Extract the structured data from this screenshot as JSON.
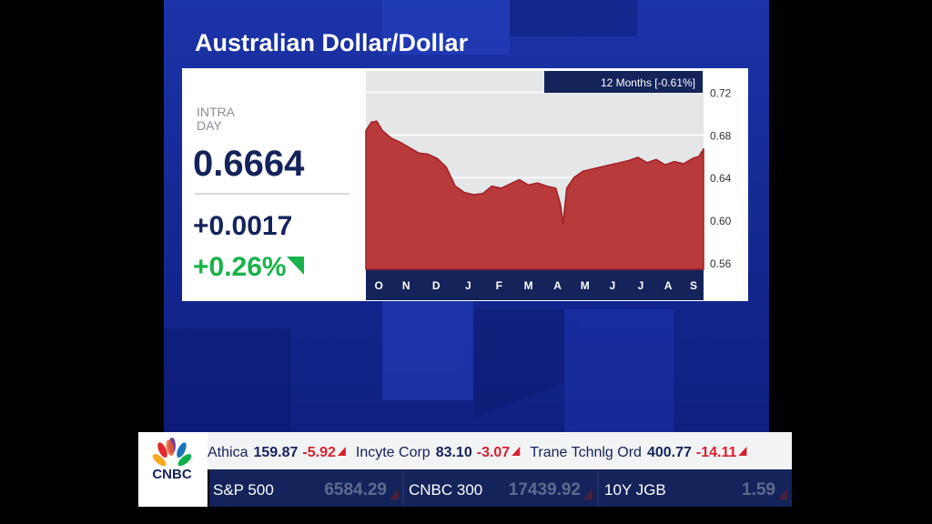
{
  "header": {
    "title": "Australian Dollar/Dollar"
  },
  "quote": {
    "label_lines": [
      "INTRA",
      "DAY"
    ],
    "price": "0.6664",
    "change": "+0.0017",
    "percent": "+0.26%"
  },
  "chart_data": {
    "type": "area",
    "annotation": "12 Months [-0.61%]",
    "color": "#b83a3a",
    "grid": true,
    "x": [
      0,
      0.19,
      0.38,
      0.58,
      0.89,
      1.21,
      1.53,
      1.85,
      2.17,
      2.49,
      2.81,
      3.13,
      3.45,
      3.77,
      4.09,
      4.41,
      4.73,
      5.05,
      5.37,
      5.69,
      6.01,
      6.33,
      6.65,
      6.81,
      6.9,
      7.03,
      7.28,
      7.6,
      7.92,
      8.24,
      8.56,
      8.88,
      9.2,
      9.52,
      9.84,
      10.16,
      10.48,
      10.8,
      11.12,
      11.44,
      11.66,
      11.82
    ],
    "values": [
      0.684,
      0.692,
      0.693,
      0.684,
      0.677,
      0.673,
      0.668,
      0.663,
      0.662,
      0.658,
      0.65,
      0.632,
      0.626,
      0.624,
      0.625,
      0.632,
      0.63,
      0.634,
      0.638,
      0.633,
      0.635,
      0.632,
      0.63,
      0.615,
      0.597,
      0.63,
      0.64,
      0.646,
      0.648,
      0.65,
      0.652,
      0.654,
      0.656,
      0.659,
      0.654,
      0.657,
      0.652,
      0.655,
      0.653,
      0.658,
      0.66,
      0.667
    ],
    "xlim": [
      0,
      11.82
    ],
    "ylim": [
      0.554,
      0.74
    ],
    "xticks": [
      {
        "value": 0.45,
        "label": "O"
      },
      {
        "value": 1.41,
        "label": "N"
      },
      {
        "value": 2.46,
        "label": "D"
      },
      {
        "value": 3.58,
        "label": "J"
      },
      {
        "value": 4.66,
        "label": "F"
      },
      {
        "value": 5.69,
        "label": "M"
      },
      {
        "value": 6.71,
        "label": "A"
      },
      {
        "value": 7.67,
        "label": "M"
      },
      {
        "value": 8.63,
        "label": "J"
      },
      {
        "value": 9.62,
        "label": "J"
      },
      {
        "value": 10.58,
        "label": "A"
      },
      {
        "value": 11.47,
        "label": "S"
      }
    ],
    "yticks": [
      0.56,
      {
        "value": 0.6,
        "label": "0.60"
      },
      0.64,
      0.68,
      0.72
    ]
  },
  "ticker": {
    "logo": "CNBC",
    "stocks": [
      {
        "name": "Athica",
        "price": "159.87",
        "change": "-5.92"
      },
      {
        "name": "Incyte Corp",
        "price": "83.10",
        "change": "-3.07"
      },
      {
        "name": "Trane Tchnlg Ord",
        "price": "400.77",
        "change": "-14.11"
      }
    ],
    "indices": [
      {
        "name": "S&P 500",
        "value": "6584.29"
      },
      {
        "name": "CNBC 300",
        "value": "17439.92"
      },
      {
        "name": "10Y JGB",
        "value": "1.59"
      }
    ]
  }
}
